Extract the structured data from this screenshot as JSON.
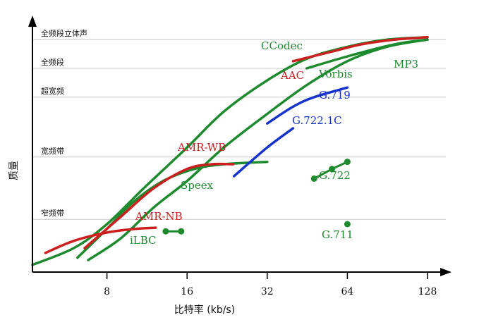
{
  "chart_data": {
    "type": "line",
    "title": "",
    "xlabel": "比特率 (kb/s)",
    "ylabel": "质量",
    "x_scale": "log2",
    "xlim": [
      4.2,
      150
    ],
    "x_ticks": [
      8,
      16,
      32,
      64,
      128
    ],
    "ylim": [
      0,
      100
    ],
    "y_levels": [
      {
        "label": "窄频带",
        "value": 22
      },
      {
        "label": "宽频带",
        "value": 48
      },
      {
        "label": "超宽频",
        "value": 73
      },
      {
        "label": "全频段",
        "value": 85
      },
      {
        "label": "全频段立体声",
        "value": 97
      }
    ],
    "grid": true,
    "colors": {
      "green": "#1e8a2e",
      "red": "#cc1f1f",
      "blue": "#1533cc",
      "grid": "#c8c8c8"
    },
    "series": [
      {
        "name": "CCodec",
        "color": "green",
        "points": [
          [
            4.2,
            3
          ],
          [
            6,
            10
          ],
          [
            8,
            20
          ],
          [
            11,
            35
          ],
          [
            16,
            52
          ],
          [
            22,
            67
          ],
          [
            32,
            80
          ],
          [
            45,
            89
          ],
          [
            64,
            94
          ],
          [
            90,
            97
          ],
          [
            128,
            98
          ]
        ]
      },
      {
        "name": "Speex",
        "color": "green",
        "points": [
          [
            6.2,
            6
          ],
          [
            8,
            18
          ],
          [
            10,
            29
          ],
          [
            13,
            38
          ],
          [
            17,
            43
          ],
          [
            22,
            45
          ],
          [
            32,
            46
          ]
        ]
      },
      {
        "name": "MP3",
        "color": "green",
        "points": [
          [
            6.8,
            5
          ],
          [
            9,
            14
          ],
          [
            12,
            27
          ],
          [
            16,
            38
          ],
          [
            22,
            52
          ],
          [
            32,
            66
          ],
          [
            45,
            78
          ],
          [
            64,
            88
          ],
          [
            90,
            94
          ],
          [
            128,
            97
          ]
        ]
      },
      {
        "name": "AMR-NB",
        "color": "red",
        "points": [
          [
            4.7,
            8
          ],
          [
            6,
            13
          ],
          [
            8,
            16.5
          ],
          [
            10.2,
            18
          ],
          [
            12.2,
            18.5
          ]
        ]
      },
      {
        "name": "AMR-WB",
        "color": "red",
        "points": [
          [
            6.6,
            10
          ],
          [
            9,
            23
          ],
          [
            12,
            35
          ],
          [
            16,
            43
          ],
          [
            19.85,
            45
          ],
          [
            23.85,
            45
          ]
        ]
      },
      {
        "name": "AAC",
        "color": "red",
        "points": [
          [
            40,
            88
          ],
          [
            56,
            92
          ],
          [
            72,
            95
          ],
          [
            96,
            97
          ],
          [
            128,
            98
          ]
        ]
      },
      {
        "name": "Vorbis",
        "color": "green",
        "points": [
          [
            45,
            85
          ],
          [
            64,
            90
          ],
          [
            96,
            95
          ],
          [
            128,
            97
          ]
        ]
      },
      {
        "name": "G.719",
        "color": "blue",
        "points": [
          [
            32,
            62
          ],
          [
            40,
            69
          ],
          [
            48,
            73
          ],
          [
            64,
            77
          ]
        ]
      },
      {
        "name": "G.722.1C",
        "color": "blue",
        "points": [
          [
            24,
            40
          ],
          [
            32,
            52
          ],
          [
            40,
            60
          ]
        ]
      },
      {
        "name": "G.722",
        "color": "green",
        "markers": true,
        "points": [
          [
            48,
            39
          ],
          [
            56,
            43
          ],
          [
            64,
            46
          ]
        ]
      },
      {
        "name": "iLBC",
        "color": "green",
        "markers": true,
        "points": [
          [
            13.3,
            17
          ],
          [
            15.2,
            17
          ]
        ]
      },
      {
        "name": "G.711",
        "color": "green",
        "markers": true,
        "points": [
          [
            64,
            20
          ]
        ]
      }
    ],
    "annotations": [
      {
        "text": "CCodec",
        "series": "CCodec"
      },
      {
        "text": "AAC",
        "series": "AAC"
      },
      {
        "text": "Vorbis",
        "series": "Vorbis"
      },
      {
        "text": "MP3",
        "series": "MP3"
      },
      {
        "text": "G.719",
        "series": "G.719"
      },
      {
        "text": "G.722.1C",
        "series": "G.722.1C"
      },
      {
        "text": "AMR-WB",
        "series": "AMR-WB"
      },
      {
        "text": "Speex",
        "series": "Speex"
      },
      {
        "text": "G.722",
        "series": "G.722"
      },
      {
        "text": "AMR-NB",
        "series": "AMR-NB"
      },
      {
        "text": "iLBC",
        "series": "iLBC"
      },
      {
        "text": "G.711",
        "series": "G.711"
      }
    ]
  }
}
